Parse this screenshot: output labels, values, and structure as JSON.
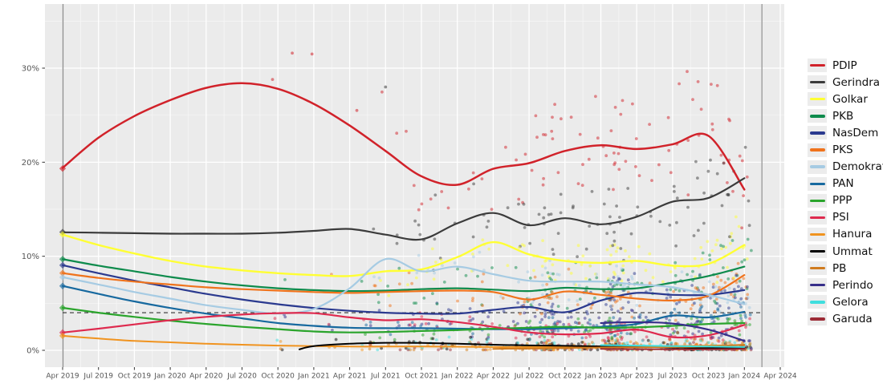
{
  "chart_data": {
    "type": "scatter",
    "description": "Indonesian party polling: semi-transparent poll scatter points with smoothed trend lines per party",
    "title": "",
    "xlabel": "",
    "ylabel": "",
    "x_unit": "quarters since Apr 2019 (0 = Apr 2019, 1 = Jul 2019, ... 20 = Apr 2024)",
    "x_tick_labels": [
      "Apr 2019",
      "Jul 2019",
      "Oct 2019",
      "Jan 2020",
      "Apr 2020",
      "Jul 2020",
      "Oct 2020",
      "Jan 2021",
      "Apr 2021",
      "Jul 2021",
      "Oct 2021",
      "Jan 2022",
      "Apr 2022",
      "Jul 2022",
      "Oct 2022",
      "Jan 2023",
      "Apr 2023",
      "Jul 2023",
      "Oct 2023",
      "Jan 2024",
      "Apr 2024"
    ],
    "y_tick_values": [
      0,
      10,
      20,
      30
    ],
    "y_tick_labels": [
      "0%",
      "10%",
      "20%",
      "30%"
    ],
    "ylim": [
      -1.8,
      36.8
    ],
    "xlim_quarters": [
      -0.49,
      20.11
    ],
    "grid": "ggplot: grey panel, white major/minor gridlines",
    "legend_position": "right",
    "threshold_line": {
      "value": 4,
      "style": "dashed",
      "color": "#333333"
    },
    "event_vlines": [
      {
        "x_quarter": 0.01,
        "color": "#8f8f8f"
      },
      {
        "x_quarter": 19.49,
        "color": "#9c9c9c"
      }
    ],
    "series": [
      {
        "name": "PDIP",
        "color": "#d1222a",
        "width": 2.5,
        "marker_2019": 19.33,
        "points": [
          [
            0,
            19.4
          ],
          [
            1,
            22.6
          ],
          [
            2,
            24.9
          ],
          [
            3,
            26.6
          ],
          [
            4,
            27.9
          ],
          [
            5,
            28.4
          ],
          [
            6,
            27.8
          ],
          [
            7,
            26.2
          ],
          [
            8,
            23.9
          ],
          [
            9,
            21.2
          ],
          [
            10,
            18.5
          ],
          [
            11,
            17.6
          ],
          [
            12,
            19.3
          ],
          [
            13,
            19.9
          ],
          [
            14,
            21.2
          ],
          [
            15,
            21.8
          ],
          [
            16,
            21.4
          ],
          [
            17,
            21.9
          ],
          [
            18,
            22.8
          ],
          [
            19,
            17.1
          ]
        ]
      },
      {
        "name": "Gerindra",
        "color": "#3b3b3b",
        "width": 2.2,
        "marker_2019": 12.57,
        "points": [
          [
            0,
            12.55
          ],
          [
            1,
            12.5
          ],
          [
            2,
            12.45
          ],
          [
            3,
            12.4
          ],
          [
            4,
            12.4
          ],
          [
            5,
            12.4
          ],
          [
            6,
            12.5
          ],
          [
            7,
            12.7
          ],
          [
            8,
            12.9
          ],
          [
            9,
            12.3
          ],
          [
            10,
            11.8
          ],
          [
            11,
            13.5
          ],
          [
            12,
            14.6
          ],
          [
            13,
            13.3
          ],
          [
            14,
            14.05
          ],
          [
            15,
            13.4
          ],
          [
            16,
            14.2
          ],
          [
            17,
            15.8
          ],
          [
            18,
            16.2
          ],
          [
            19,
            18.3
          ]
        ]
      },
      {
        "name": "Golkar",
        "color": "#ffff33",
        "width": 2.4,
        "marker_2019": 12.31,
        "points": [
          [
            0,
            12.3
          ],
          [
            1,
            11.2
          ],
          [
            2,
            10.3
          ],
          [
            3,
            9.5
          ],
          [
            4,
            8.9
          ],
          [
            5,
            8.5
          ],
          [
            6,
            8.2
          ],
          [
            7,
            8.0
          ],
          [
            8,
            7.9
          ],
          [
            9,
            8.4
          ],
          [
            10,
            8.6
          ],
          [
            11,
            9.9
          ],
          [
            12,
            11.5
          ],
          [
            13,
            10.2
          ],
          [
            14,
            9.5
          ],
          [
            15,
            9.3
          ],
          [
            16,
            9.5
          ],
          [
            17,
            9.0
          ],
          [
            18,
            9.2
          ],
          [
            19,
            11.2
          ]
        ]
      },
      {
        "name": "PKB",
        "color": "#0e8b4c",
        "width": 2.2,
        "marker_2019": 9.69,
        "points": [
          [
            0,
            9.69
          ],
          [
            1,
            9.0
          ],
          [
            2,
            8.4
          ],
          [
            3,
            7.8
          ],
          [
            4,
            7.3
          ],
          [
            5,
            6.9
          ],
          [
            6,
            6.6
          ],
          [
            7,
            6.4
          ],
          [
            8,
            6.3
          ],
          [
            9,
            6.35
          ],
          [
            10,
            6.5
          ],
          [
            11,
            6.6
          ],
          [
            12,
            6.45
          ],
          [
            13,
            6.3
          ],
          [
            14,
            6.65
          ],
          [
            15,
            6.5
          ],
          [
            16,
            6.6
          ],
          [
            17,
            7.2
          ],
          [
            18,
            7.9
          ],
          [
            19,
            8.9
          ]
        ]
      },
      {
        "name": "NasDem",
        "color": "#2b3a8f",
        "width": 2.2,
        "marker_2019": 9.05,
        "points": [
          [
            0,
            9.05
          ],
          [
            1,
            8.2
          ],
          [
            2,
            7.4
          ],
          [
            3,
            6.7
          ],
          [
            4,
            6.0
          ],
          [
            5,
            5.4
          ],
          [
            6,
            4.9
          ],
          [
            7,
            4.5
          ],
          [
            8,
            4.2
          ],
          [
            9,
            4.0
          ],
          [
            10,
            3.9
          ],
          [
            11,
            3.9
          ],
          [
            12,
            4.3
          ],
          [
            13,
            4.6
          ],
          [
            14,
            4.05
          ],
          [
            15,
            5.3
          ],
          [
            16,
            6.1
          ],
          [
            17,
            5.9
          ],
          [
            18,
            5.9
          ],
          [
            19,
            6.4
          ]
        ]
      },
      {
        "name": "PKS",
        "color": "#f0731c",
        "width": 2.2,
        "marker_2019": 8.21,
        "points": [
          [
            0,
            8.21
          ],
          [
            1,
            7.7
          ],
          [
            2,
            7.3
          ],
          [
            3,
            7.0
          ],
          [
            4,
            6.7
          ],
          [
            5,
            6.5
          ],
          [
            6,
            6.35
          ],
          [
            7,
            6.2
          ],
          [
            8,
            6.1
          ],
          [
            9,
            6.2
          ],
          [
            10,
            6.3
          ],
          [
            11,
            6.35
          ],
          [
            12,
            6.2
          ],
          [
            13,
            5.4
          ],
          [
            14,
            6.25
          ],
          [
            15,
            5.9
          ],
          [
            16,
            5.5
          ],
          [
            17,
            5.3
          ],
          [
            18,
            5.8
          ],
          [
            19,
            8.0
          ]
        ]
      },
      {
        "name": "Demokrat",
        "color": "#a6cbe3",
        "width": 2.2,
        "marker_2019": 7.77,
        "points": [
          [
            0,
            7.77
          ],
          [
            1,
            7.0
          ],
          [
            2,
            6.2
          ],
          [
            3,
            5.5
          ],
          [
            4,
            4.8
          ],
          [
            5,
            4.3
          ],
          [
            6,
            3.9
          ],
          [
            7,
            4.4
          ],
          [
            8,
            6.6
          ],
          [
            9,
            9.7
          ],
          [
            10,
            8.4
          ],
          [
            11,
            8.9
          ],
          [
            12,
            8.1
          ],
          [
            13,
            7.4
          ],
          [
            14,
            7.3
          ],
          [
            15,
            7.3
          ],
          [
            16,
            7.0
          ],
          [
            17,
            6.7
          ],
          [
            18,
            5.9
          ],
          [
            19,
            4.9
          ]
        ]
      },
      {
        "name": "PAN",
        "color": "#17699f",
        "width": 2.2,
        "marker_2019": 6.84,
        "points": [
          [
            0,
            6.84
          ],
          [
            1,
            6.0
          ],
          [
            2,
            5.2
          ],
          [
            3,
            4.5
          ],
          [
            4,
            3.9
          ],
          [
            5,
            3.4
          ],
          [
            6,
            2.9
          ],
          [
            7,
            2.6
          ],
          [
            8,
            2.4
          ],
          [
            9,
            2.35
          ],
          [
            10,
            2.35
          ],
          [
            11,
            2.3
          ],
          [
            12,
            2.25
          ],
          [
            13,
            2.25
          ],
          [
            14,
            2.35
          ],
          [
            15,
            2.5
          ],
          [
            16,
            2.8
          ],
          [
            17,
            3.7
          ],
          [
            18,
            3.5
          ],
          [
            19,
            4.1
          ]
        ]
      },
      {
        "name": "PPP",
        "color": "#2aa42c",
        "width": 2.2,
        "marker_2019": 4.52,
        "points": [
          [
            0,
            4.52
          ],
          [
            1,
            4.0
          ],
          [
            2,
            3.55
          ],
          [
            3,
            3.15
          ],
          [
            4,
            2.8
          ],
          [
            5,
            2.5
          ],
          [
            6,
            2.25
          ],
          [
            7,
            2.0
          ],
          [
            8,
            1.9
          ],
          [
            9,
            1.95
          ],
          [
            10,
            2.05
          ],
          [
            11,
            2.15
          ],
          [
            12,
            2.3
          ],
          [
            13,
            2.4
          ],
          [
            14,
            2.5
          ],
          [
            15,
            2.4
          ],
          [
            16,
            2.45
          ],
          [
            17,
            2.6
          ],
          [
            18,
            2.8
          ],
          [
            19,
            2.9
          ]
        ]
      },
      {
        "name": "PSI",
        "color": "#de2a4e",
        "width": 2.2,
        "marker_2019": 1.89,
        "points": [
          [
            0,
            1.89
          ],
          [
            1,
            2.3
          ],
          [
            2,
            2.75
          ],
          [
            3,
            3.2
          ],
          [
            4,
            3.55
          ],
          [
            5,
            3.8
          ],
          [
            6,
            3.95
          ],
          [
            7,
            3.95
          ],
          [
            8,
            3.5
          ],
          [
            9,
            3.2
          ],
          [
            10,
            3.3
          ],
          [
            11,
            3.0
          ],
          [
            12,
            2.5
          ],
          [
            13,
            1.9
          ],
          [
            14,
            1.7
          ],
          [
            15,
            1.8
          ],
          [
            16,
            2.2
          ],
          [
            17,
            1.4
          ],
          [
            18,
            1.6
          ],
          [
            19,
            2.7
          ]
        ]
      },
      {
        "name": "Hanura",
        "color": "#f0931f",
        "width": 2.0,
        "marker_2019": 1.54,
        "points": [
          [
            0,
            1.54
          ],
          [
            1,
            1.25
          ],
          [
            2,
            1.0
          ],
          [
            3,
            0.85
          ],
          [
            4,
            0.7
          ],
          [
            5,
            0.6
          ],
          [
            6,
            0.5
          ],
          [
            7,
            0.45
          ],
          [
            8,
            0.4
          ],
          [
            9,
            0.4
          ],
          [
            10,
            0.4
          ],
          [
            11,
            0.38
          ],
          [
            12,
            0.35
          ],
          [
            13,
            0.35
          ],
          [
            14,
            0.35
          ],
          [
            15,
            0.4
          ],
          [
            16,
            0.4
          ],
          [
            17,
            0.45
          ],
          [
            18,
            0.5
          ],
          [
            19,
            0.55
          ]
        ]
      },
      {
        "name": "Ummat",
        "color": "#000000",
        "width": 2.0,
        "marker_2019": null,
        "points": [
          [
            6.6,
            0.1
          ],
          [
            7,
            0.45
          ],
          [
            8,
            0.7
          ],
          [
            9,
            0.8
          ],
          [
            10,
            0.78
          ],
          [
            11,
            0.7
          ],
          [
            12,
            0.6
          ],
          [
            13,
            0.52
          ],
          [
            14,
            0.48
          ],
          [
            15,
            0.42
          ],
          [
            16,
            0.38
          ],
          [
            17,
            0.3
          ],
          [
            18,
            0.25
          ],
          [
            19,
            0.3
          ]
        ]
      },
      {
        "name": "PB",
        "color": "#d07b1e",
        "width": 2.0,
        "marker_2019": null,
        "points": [
          [
            12,
            0.15
          ],
          [
            13,
            0.2
          ],
          [
            14,
            0.25
          ],
          [
            15,
            0.3
          ],
          [
            16,
            0.32
          ],
          [
            17,
            0.35
          ],
          [
            18,
            0.42
          ],
          [
            19,
            0.6
          ]
        ]
      },
      {
        "name": "Perindo",
        "color": "#372f8a",
        "width": 2.2,
        "marker_2019": null,
        "points": [
          [
            15,
            2.9
          ],
          [
            16,
            3.0
          ],
          [
            17,
            2.85
          ],
          [
            18,
            2.2
          ],
          [
            19,
            1.0
          ]
        ]
      },
      {
        "name": "Gelora",
        "color": "#3fdede",
        "width": 2.0,
        "marker_2019": null,
        "points": [
          [
            15,
            0.55
          ],
          [
            16,
            0.5
          ],
          [
            17,
            0.45
          ],
          [
            18,
            0.4
          ],
          [
            19,
            0.35
          ]
        ]
      },
      {
        "name": "Garuda",
        "color": "#9c2b36",
        "width": 2.0,
        "marker_2019": null,
        "points": [
          [
            15,
            0.15
          ],
          [
            16,
            0.12
          ],
          [
            17,
            0.1
          ],
          [
            18,
            0.1
          ],
          [
            19,
            0.15
          ]
        ]
      }
    ],
    "scatter_style": {
      "radius": 1.9,
      "opacity": 0.5,
      "note": "hundreds of individual poll results jittered around each trend; regenerated deterministically",
      "seed": 13,
      "n_poll_dates": 105,
      "q_min": 5.7,
      "q_max": 19.15,
      "late_bias_pow": 0.5,
      "sigma_base": 0.45,
      "sigma_slope": 0.2,
      "include_prob_early": 0.55,
      "include_prob_late": 0.9
    },
    "outlier_points": [
      {
        "series": "PDIP",
        "q": 5.85,
        "v": 28.8
      },
      {
        "series": "PDIP",
        "q": 6.4,
        "v": 31.6
      },
      {
        "series": "PDIP",
        "q": 6.95,
        "v": 31.5
      },
      {
        "series": "PDIP",
        "q": 8.2,
        "v": 25.5
      },
      {
        "series": "Gerindra",
        "q": 9.0,
        "v": 28.0
      }
    ]
  },
  "legend": {
    "items": [
      "PDIP",
      "Gerindra",
      "Golkar",
      "PKB",
      "NasDem",
      "PKS",
      "Demokrat",
      "PAN",
      "PPP",
      "PSI",
      "Hanura",
      "Ummat",
      "PB",
      "Perindo",
      "Gelora",
      "Garuda"
    ]
  },
  "panel": {
    "background": "#ebebeb",
    "grid_major": "#ffffff",
    "grid_minor": "#f7f7f7",
    "axis_text_color": "#555555"
  }
}
